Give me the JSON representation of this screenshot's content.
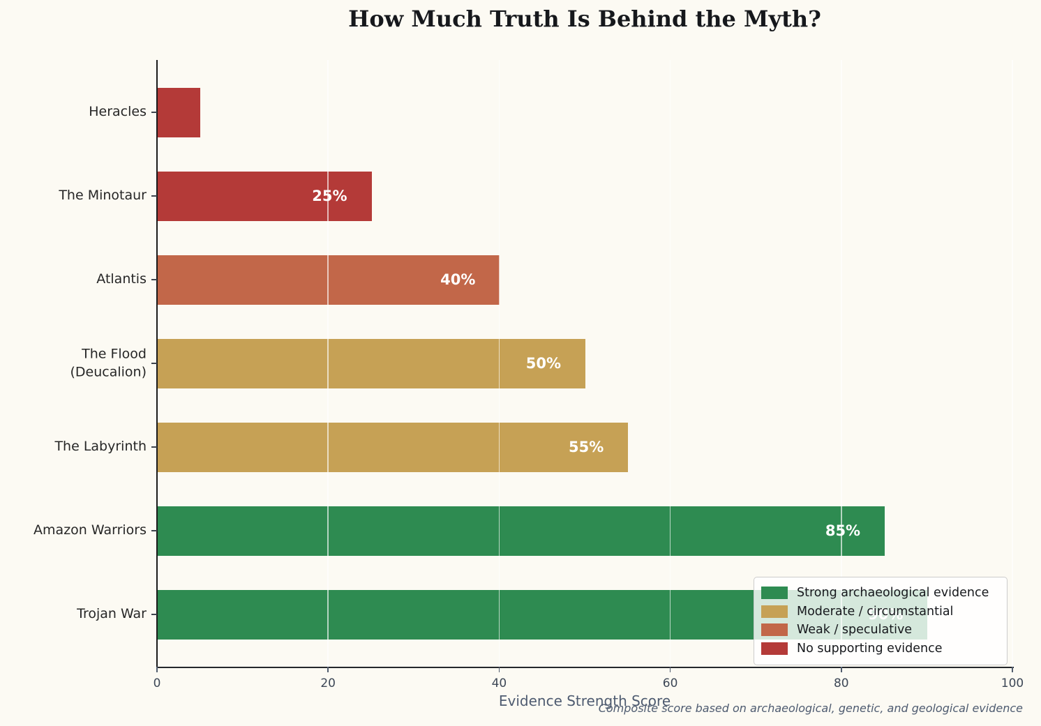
{
  "chart_data": {
    "type": "bar",
    "orientation": "horizontal",
    "title": "How Much Truth Is Behind the Myth?",
    "xlabel": "Evidence Strength Score",
    "footnote": "Composite score based on archaeological, genetic, and geological evidence",
    "xlim": [
      0,
      100
    ],
    "xticks": [
      0,
      20,
      40,
      60,
      80,
      100
    ],
    "grid": true,
    "categories": [
      "Heracles",
      "The Minotaur",
      "Atlantis",
      "The Flood\n(Deucalion)",
      "The Labyrinth",
      "Amazon Warriors",
      "Trojan War"
    ],
    "values": [
      5,
      25,
      40,
      50,
      55,
      85,
      90
    ],
    "bar_labels": [
      "",
      "25%",
      "40%",
      "50%",
      "55%",
      "85%",
      "90%"
    ],
    "evidence_levels": [
      "none",
      "none",
      "weak",
      "moderate",
      "moderate",
      "strong",
      "strong"
    ],
    "colors": {
      "strong": "#2E8B51",
      "moderate": "#C6A155",
      "weak": "#C26749",
      "none": "#B43A38"
    },
    "legend": {
      "position": "lower right",
      "entries": [
        {
          "label": "Strong archaeological evidence",
          "color_key": "strong"
        },
        {
          "label": "Moderate / circumstantial",
          "color_key": "moderate"
        },
        {
          "label": "Weak / speculative",
          "color_key": "weak"
        },
        {
          "label": "No supporting evidence",
          "color_key": "none"
        }
      ]
    }
  }
}
